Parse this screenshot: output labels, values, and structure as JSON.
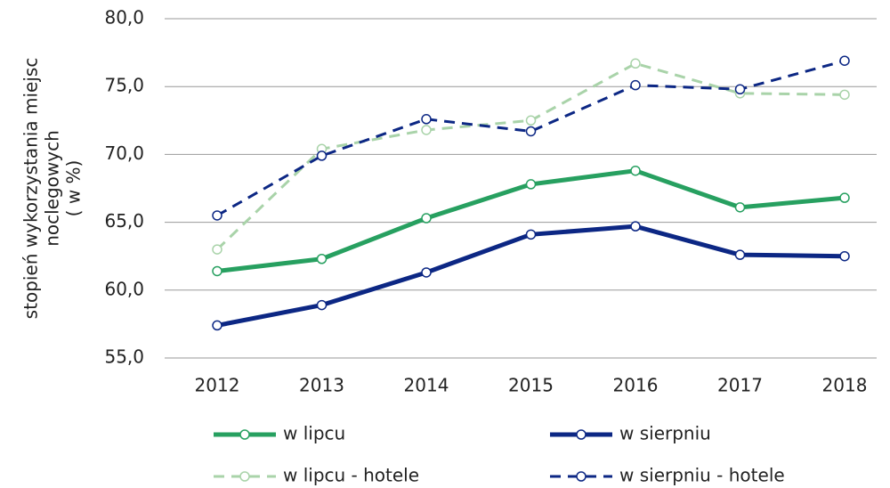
{
  "chart_data": {
    "type": "line",
    "ylabel": [
      "stopień wykorzystania miejsc",
      "noclegowych",
      "( w %)"
    ],
    "categories": [
      "2012",
      "2013",
      "2014",
      "2015",
      "2016",
      "2017",
      "2018"
    ],
    "series": [
      {
        "name": "w lipcu",
        "color": "#27a060",
        "dashed": false,
        "values": [
          61.4,
          62.3,
          65.3,
          67.8,
          68.8,
          66.1,
          66.8
        ]
      },
      {
        "name": "w sierpniu",
        "color": "#0c2784",
        "dashed": false,
        "values": [
          57.4,
          58.9,
          61.3,
          64.1,
          64.7,
          62.6,
          62.5
        ]
      },
      {
        "name": "w lipcu - hotele",
        "color": "#a9d3a9",
        "dashed": true,
        "values": [
          63.0,
          70.4,
          71.8,
          72.5,
          76.7,
          74.5,
          74.4
        ]
      },
      {
        "name": "w sierpniu - hotele",
        "color": "#0c2784",
        "dashed": true,
        "values": [
          65.5,
          69.9,
          72.6,
          71.7,
          75.1,
          74.8,
          76.9
        ]
      }
    ],
    "ylim": [
      55,
      80
    ],
    "yticks": [
      {
        "value": 55,
        "label": "55,0"
      },
      {
        "value": 60,
        "label": "60,0"
      },
      {
        "value": 65,
        "label": "65,0"
      },
      {
        "value": 70,
        "label": "70,0"
      },
      {
        "value": 75,
        "label": "75,0"
      },
      {
        "value": 80,
        "label": "80,0"
      }
    ],
    "grid": true
  }
}
